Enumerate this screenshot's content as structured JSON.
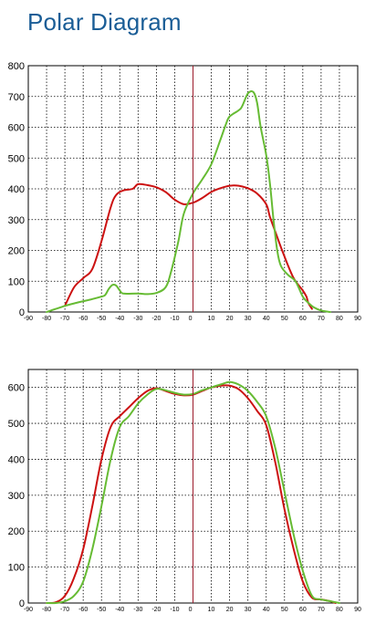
{
  "page": {
    "title": "Polar Diagram"
  },
  "colors": {
    "red": "#cc1111",
    "green": "#66bb33",
    "axis": "#000000",
    "grid": "#000000",
    "center_line": "#9b1a2a",
    "title": "#1a5d96"
  },
  "chart_data": [
    {
      "type": "line",
      "title": "",
      "xlabel": "",
      "ylabel": "",
      "xlim": [
        -90,
        90
      ],
      "ylim": [
        0,
        800
      ],
      "grid": true,
      "x_ticks": [
        -90,
        -80,
        -70,
        -60,
        -50,
        -40,
        -30,
        -20,
        -10,
        0,
        10,
        20,
        30,
        40,
        50,
        60,
        70,
        80,
        90
      ],
      "y_ticks": [
        0,
        100,
        200,
        300,
        400,
        500,
        600,
        700,
        800
      ],
      "center_line_x": 0,
      "series": [
        {
          "color": "red",
          "points": [
            [
              -70,
              20
            ],
            [
              -65,
              80
            ],
            [
              -60,
              110
            ],
            [
              -55,
              140
            ],
            [
              -50,
              230
            ],
            [
              -45,
              340
            ],
            [
              -42,
              380
            ],
            [
              -38,
              395
            ],
            [
              -33,
              400
            ],
            [
              -30,
              415
            ],
            [
              -25,
              412
            ],
            [
              -20,
              405
            ],
            [
              -15,
              390
            ],
            [
              -10,
              365
            ],
            [
              -5,
              350
            ],
            [
              0,
              355
            ],
            [
              5,
              370
            ],
            [
              10,
              390
            ],
            [
              15,
              402
            ],
            [
              20,
              410
            ],
            [
              25,
              410
            ],
            [
              30,
              402
            ],
            [
              35,
              385
            ],
            [
              40,
              350
            ],
            [
              42,
              310
            ],
            [
              45,
              260
            ],
            [
              50,
              180
            ],
            [
              55,
              110
            ],
            [
              60,
              70
            ],
            [
              62,
              50
            ],
            [
              63,
              30
            ],
            [
              65,
              10
            ]
          ]
        },
        {
          "color": "green",
          "points": [
            [
              -80,
              0
            ],
            [
              -75,
              10
            ],
            [
              -70,
              20
            ],
            [
              -65,
              28
            ],
            [
              -60,
              35
            ],
            [
              -55,
              42
            ],
            [
              -50,
              50
            ],
            [
              -48,
              55
            ],
            [
              -46,
              75
            ],
            [
              -44,
              88
            ],
            [
              -42,
              86
            ],
            [
              -40,
              70
            ],
            [
              -38,
              60
            ],
            [
              -30,
              60
            ],
            [
              -25,
              58
            ],
            [
              -20,
              62
            ],
            [
              -15,
              80
            ],
            [
              -12,
              130
            ],
            [
              -8,
              230
            ],
            [
              -5,
              320
            ],
            [
              0,
              385
            ],
            [
              5,
              430
            ],
            [
              10,
              480
            ],
            [
              15,
              560
            ],
            [
              18,
              610
            ],
            [
              20,
              635
            ],
            [
              25,
              655
            ],
            [
              27,
              670
            ],
            [
              30,
              710
            ],
            [
              33,
              714
            ],
            [
              35,
              680
            ],
            [
              37,
              600
            ],
            [
              40,
              510
            ],
            [
              42,
              420
            ],
            [
              44,
              300
            ],
            [
              46,
              200
            ],
            [
              48,
              150
            ],
            [
              52,
              120
            ],
            [
              56,
              100
            ],
            [
              60,
              50
            ],
            [
              63,
              30
            ],
            [
              66,
              15
            ],
            [
              70,
              5
            ],
            [
              75,
              0
            ]
          ]
        }
      ]
    },
    {
      "type": "line",
      "title": "",
      "xlabel": "",
      "ylabel": "",
      "xlim": [
        -90,
        90
      ],
      "ylim": [
        0,
        650
      ],
      "grid": true,
      "x_ticks": [
        -90,
        -80,
        -70,
        -60,
        -50,
        -40,
        -30,
        -20,
        -10,
        0,
        10,
        20,
        30,
        40,
        50,
        60,
        70,
        80,
        90
      ],
      "y_ticks": [
        0,
        100,
        200,
        300,
        400,
        500,
        600
      ],
      "center_line_x": 0,
      "series": [
        {
          "color": "red",
          "points": [
            [
              -80,
              0
            ],
            [
              -75,
              2
            ],
            [
              -70,
              20
            ],
            [
              -65,
              70
            ],
            [
              -60,
              150
            ],
            [
              -55,
              270
            ],
            [
              -50,
              400
            ],
            [
              -45,
              490
            ],
            [
              -40,
              520
            ],
            [
              -35,
              545
            ],
            [
              -30,
              570
            ],
            [
              -25,
              590
            ],
            [
              -20,
              598
            ],
            [
              -15,
              590
            ],
            [
              -10,
              582
            ],
            [
              -5,
              578
            ],
            [
              0,
              580
            ],
            [
              5,
              590
            ],
            [
              10,
              600
            ],
            [
              15,
              605
            ],
            [
              20,
              605
            ],
            [
              25,
              595
            ],
            [
              30,
              570
            ],
            [
              35,
              535
            ],
            [
              40,
              495
            ],
            [
              45,
              390
            ],
            [
              50,
              260
            ],
            [
              55,
              150
            ],
            [
              60,
              60
            ],
            [
              65,
              15
            ],
            [
              70,
              10
            ],
            [
              75,
              5
            ],
            [
              78,
              0
            ]
          ]
        },
        {
          "color": "green",
          "points": [
            [
              -80,
              0
            ],
            [
              -75,
              0
            ],
            [
              -70,
              5
            ],
            [
              -65,
              20
            ],
            [
              -60,
              60
            ],
            [
              -55,
              150
            ],
            [
              -50,
              270
            ],
            [
              -45,
              400
            ],
            [
              -40,
              490
            ],
            [
              -35,
              520
            ],
            [
              -30,
              555
            ],
            [
              -25,
              580
            ],
            [
              -20,
              596
            ],
            [
              -15,
              592
            ],
            [
              -10,
              585
            ],
            [
              -5,
              580
            ],
            [
              0,
              582
            ],
            [
              5,
              592
            ],
            [
              10,
              600
            ],
            [
              15,
              608
            ],
            [
              20,
              615
            ],
            [
              25,
              608
            ],
            [
              30,
              590
            ],
            [
              35,
              560
            ],
            [
              40,
              520
            ],
            [
              45,
              430
            ],
            [
              50,
              310
            ],
            [
              55,
              190
            ],
            [
              60,
              90
            ],
            [
              65,
              20
            ],
            [
              70,
              10
            ],
            [
              75,
              5
            ],
            [
              80,
              0
            ]
          ]
        }
      ]
    }
  ]
}
